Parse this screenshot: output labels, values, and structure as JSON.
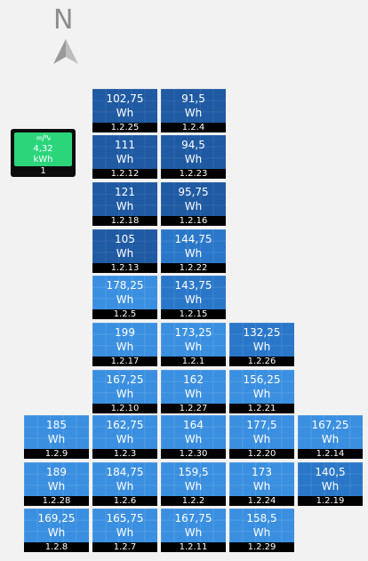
{
  "compass": {
    "letter": "N",
    "icon": "north-arrow-icon"
  },
  "inverter": {
    "icon": "inverter-icon",
    "icon_text": "=/∿",
    "value": "4,32",
    "unit": "kWh",
    "id": "1"
  },
  "colors": {
    "dark": "#1f5aa3",
    "mid": "#2a77c9",
    "light": "#3a8fe0",
    "inverter": "#2bd67b"
  },
  "panels": [
    {
      "id": "1.2.25",
      "value": "102,75",
      "unit": "Wh",
      "tone": "dark"
    },
    {
      "id": "1.2.4",
      "value": "91,5",
      "unit": "Wh",
      "tone": "dark"
    },
    {
      "id": "1.2.12",
      "value": "111",
      "unit": "Wh",
      "tone": "dark"
    },
    {
      "id": "1.2.23",
      "value": "94,5",
      "unit": "Wh",
      "tone": "dark"
    },
    {
      "id": "1.2.18",
      "value": "121",
      "unit": "Wh",
      "tone": "dark"
    },
    {
      "id": "1.2.16",
      "value": "95,75",
      "unit": "Wh",
      "tone": "dark"
    },
    {
      "id": "1.2.13",
      "value": "105",
      "unit": "Wh",
      "tone": "dark"
    },
    {
      "id": "1.2.22",
      "value": "144,75",
      "unit": "Wh",
      "tone": "mid"
    },
    {
      "id": "1.2.5",
      "value": "178,25",
      "unit": "Wh",
      "tone": "light"
    },
    {
      "id": "1.2.15",
      "value": "143,75",
      "unit": "Wh",
      "tone": "mid"
    },
    {
      "id": "1.2.17",
      "value": "199",
      "unit": "Wh",
      "tone": "light"
    },
    {
      "id": "1.2.1",
      "value": "173,25",
      "unit": "Wh",
      "tone": "light"
    },
    {
      "id": "1.2.26",
      "value": "132,25",
      "unit": "Wh",
      "tone": "mid"
    },
    {
      "id": "1.2.10",
      "value": "167,25",
      "unit": "Wh",
      "tone": "light"
    },
    {
      "id": "1.2.27",
      "value": "162",
      "unit": "Wh",
      "tone": "light"
    },
    {
      "id": "1.2.21",
      "value": "156,25",
      "unit": "Wh",
      "tone": "light"
    },
    {
      "id": "1.2.9",
      "value": "185",
      "unit": "Wh",
      "tone": "light"
    },
    {
      "id": "1.2.3",
      "value": "162,75",
      "unit": "Wh",
      "tone": "light"
    },
    {
      "id": "1.2.30",
      "value": "164",
      "unit": "Wh",
      "tone": "light"
    },
    {
      "id": "1.2.20",
      "value": "177,5",
      "unit": "Wh",
      "tone": "light"
    },
    {
      "id": "1.2.14",
      "value": "167,25",
      "unit": "Wh",
      "tone": "light"
    },
    {
      "id": "1.2.28",
      "value": "189",
      "unit": "Wh",
      "tone": "light"
    },
    {
      "id": "1.2.6",
      "value": "184,75",
      "unit": "Wh",
      "tone": "light"
    },
    {
      "id": "1.2.2",
      "value": "159,5",
      "unit": "Wh",
      "tone": "light"
    },
    {
      "id": "1.2.24",
      "value": "173",
      "unit": "Wh",
      "tone": "light"
    },
    {
      "id": "1.2.19",
      "value": "140,5",
      "unit": "Wh",
      "tone": "mid"
    },
    {
      "id": "1.2.8",
      "value": "169,25",
      "unit": "Wh",
      "tone": "light"
    },
    {
      "id": "1.2.7",
      "value": "165,75",
      "unit": "Wh",
      "tone": "light"
    },
    {
      "id": "1.2.11",
      "value": "167,75",
      "unit": "Wh",
      "tone": "light"
    },
    {
      "id": "1.2.29",
      "value": "158,5",
      "unit": "Wh",
      "tone": "light"
    }
  ]
}
